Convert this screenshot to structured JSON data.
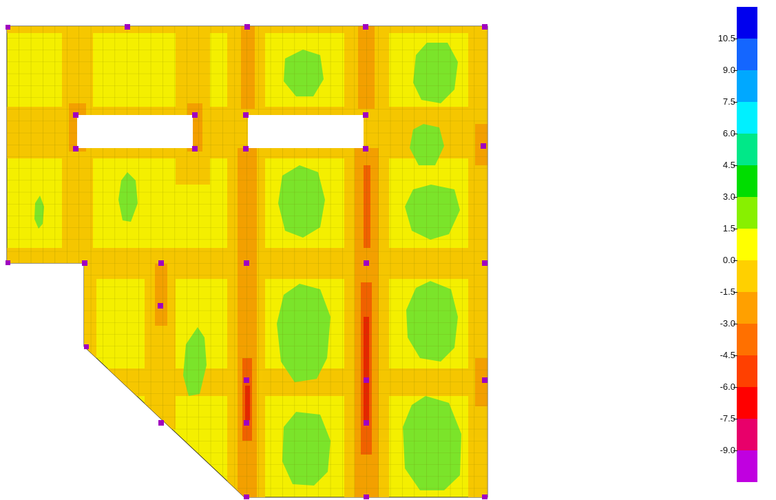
{
  "contour_plot": {
    "colors": {
      "slab_fill": "#f4ef00",
      "mild_negative": "#f6c400",
      "moderate_negative": "#f39b00",
      "strong_negative": "#ef5a00",
      "very_strong_negative": "#e41c00",
      "positive": "#7be42a",
      "mesh_line": "#555500",
      "column_marker": "#a000c0"
    }
  },
  "legend": {
    "tick_labels": [
      "10.5",
      "9.0",
      "7.5",
      "6.0",
      "4.5",
      "3.0",
      "1.5",
      "0.0",
      "-1.5",
      "-3.0",
      "-4.5",
      "-6.0",
      "-7.5",
      "-9.0"
    ],
    "bands": [
      "#0000ee",
      "#1466ff",
      "#00a8ff",
      "#00f0ff",
      "#00e888",
      "#00dd00",
      "#88f000",
      "#ffff00",
      "#ffd000",
      "#ffa000",
      "#ff7000",
      "#ff4000",
      "#ff0000",
      "#e8006a",
      "#c000e0"
    ]
  }
}
